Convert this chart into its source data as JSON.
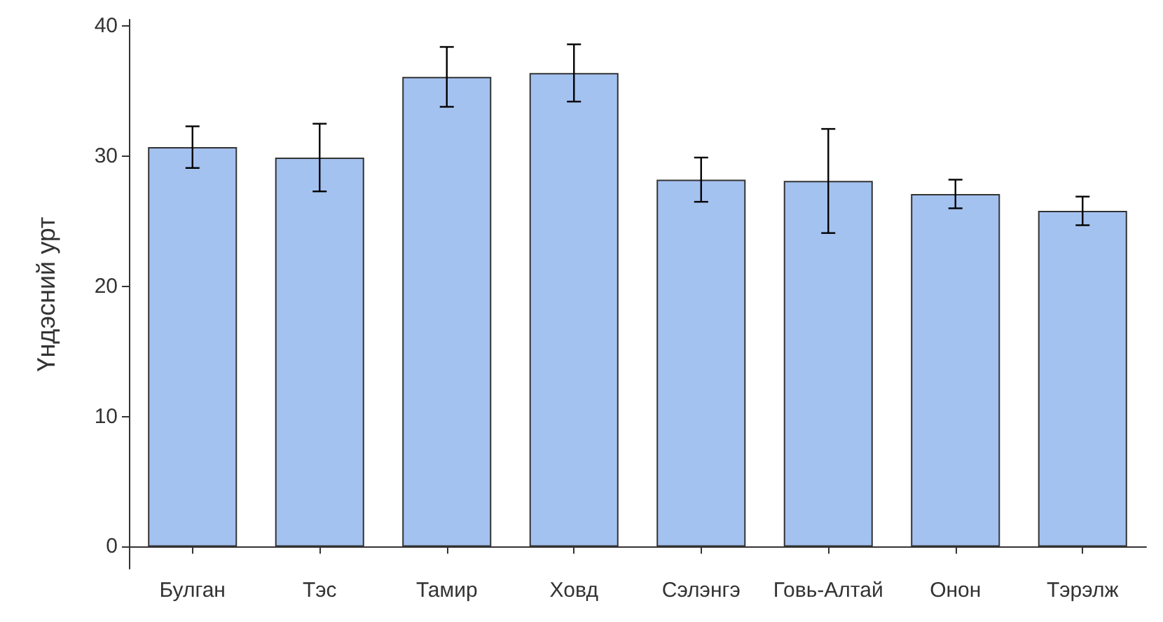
{
  "chart_data": {
    "type": "bar",
    "ylabel": "Үндэсний урт",
    "categories": [
      "Булган",
      "Тэс",
      "Тамир",
      "Ховд",
      "Сэлэнгэ",
      "Говь-Алтай",
      "Онон",
      "Тэрэлж"
    ],
    "values": [
      30.7,
      29.9,
      36.1,
      36.4,
      28.2,
      28.1,
      27.1,
      25.8
    ],
    "errors": [
      1.6,
      2.6,
      2.3,
      2.2,
      1.7,
      4.0,
      1.1,
      1.1
    ],
    "color": "#a4c2f0",
    "ylim": [
      -1.7,
      40.5
    ],
    "yticks": [
      0,
      10,
      20,
      30,
      40
    ],
    "grid": false
  }
}
